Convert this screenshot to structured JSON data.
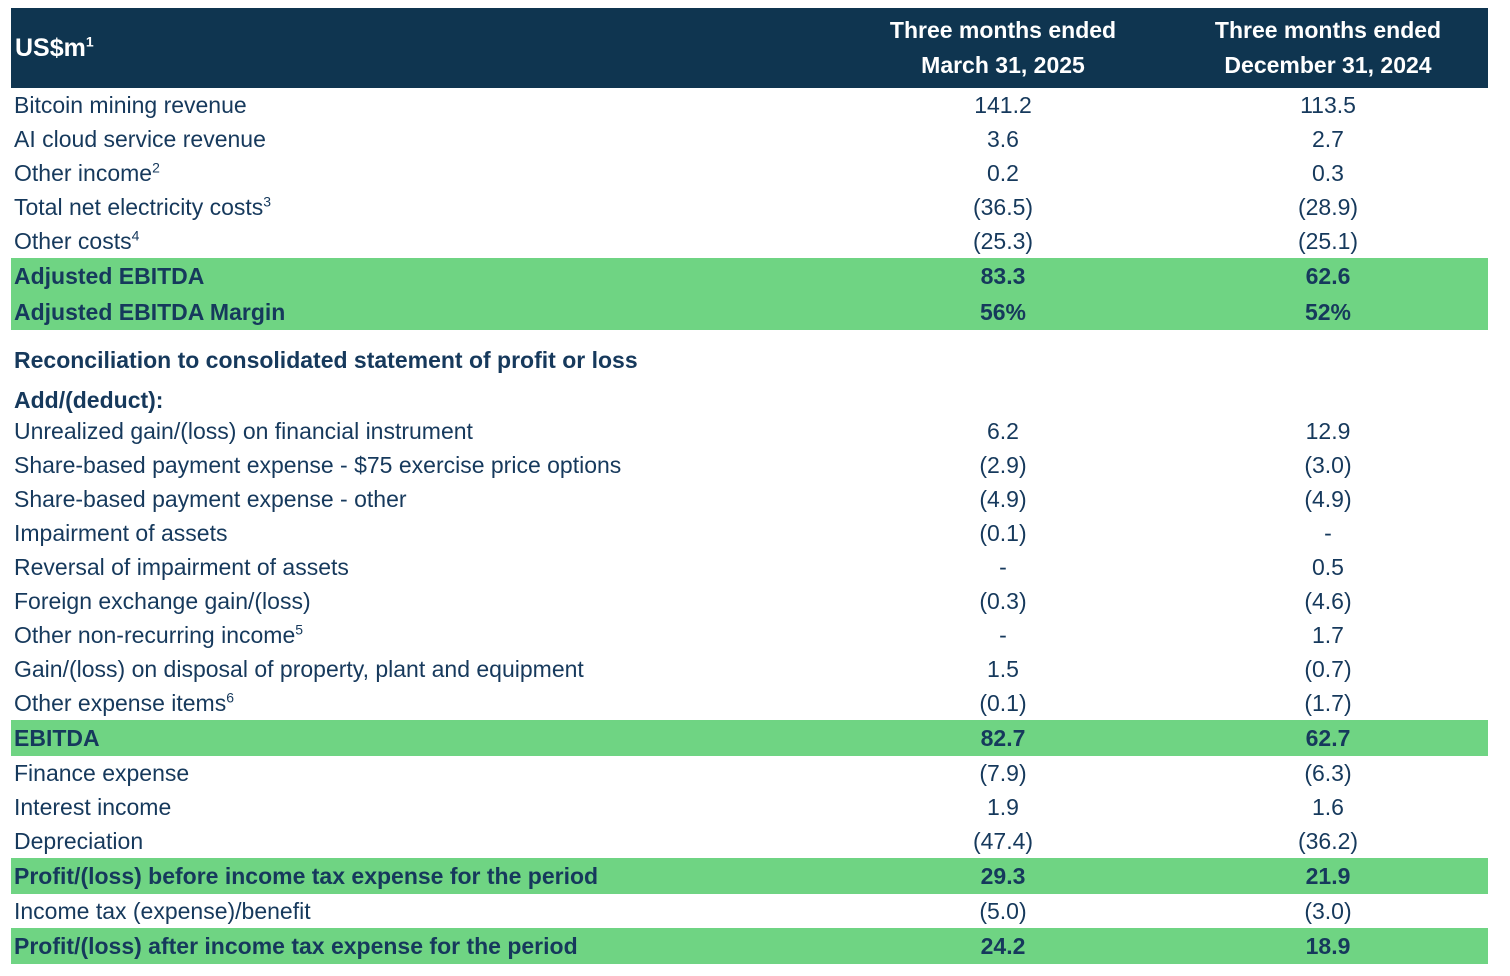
{
  "table": {
    "unit_label": "US$m",
    "unit_sup": "1",
    "colors": {
      "header_bg": "#0f3550",
      "highlight_bg": "#6fd483",
      "text": "#16395c",
      "header_text": "#ffffff"
    },
    "columns": [
      {
        "line1": "Three months ended",
        "line2": "March 31, 2025"
      },
      {
        "line1": "Three months ended",
        "line2": "December 31, 2024"
      }
    ],
    "rows": [
      {
        "type": "data",
        "label": "Bitcoin mining revenue",
        "values": [
          "141.2",
          "113.5"
        ]
      },
      {
        "type": "data",
        "label": "AI cloud service revenue",
        "values": [
          "3.6",
          "2.7"
        ]
      },
      {
        "type": "data",
        "label": "Other income",
        "sup": "2",
        "values": [
          "0.2",
          "0.3"
        ]
      },
      {
        "type": "data",
        "label": "Total net electricity costs",
        "sup": "3",
        "values": [
          "(36.5)",
          "(28.9)"
        ]
      },
      {
        "type": "data",
        "label": "Other costs",
        "sup": "4",
        "values": [
          "(25.3)",
          "(25.1)"
        ]
      },
      {
        "type": "highlight",
        "label": "Adjusted EBITDA",
        "values": [
          "83.3",
          "62.6"
        ]
      },
      {
        "type": "highlight",
        "label": "Adjusted EBITDA Margin",
        "values": [
          "56%",
          "52%"
        ]
      },
      {
        "type": "section",
        "gap": "lg",
        "label": "Reconciliation to consolidated statement of profit or loss",
        "values": [
          "",
          ""
        ]
      },
      {
        "type": "section",
        "gap": "sm",
        "label": "Add/(deduct):",
        "values": [
          "",
          ""
        ]
      },
      {
        "type": "data",
        "label": "Unrealized gain/(loss) on financial instrument",
        "values": [
          "6.2",
          "12.9"
        ]
      },
      {
        "type": "data",
        "label": "Share-based payment expense - $75 exercise price options",
        "values": [
          "(2.9)",
          "(3.0)"
        ]
      },
      {
        "type": "data",
        "label": "Share-based payment expense - other",
        "values": [
          "(4.9)",
          "(4.9)"
        ]
      },
      {
        "type": "data",
        "label": "Impairment of assets",
        "values": [
          "(0.1)",
          "-"
        ]
      },
      {
        "type": "data",
        "label": "Reversal of impairment of assets",
        "values": [
          "-",
          "0.5"
        ]
      },
      {
        "type": "data",
        "label": "Foreign exchange gain/(loss)",
        "values": [
          "(0.3)",
          "(4.6)"
        ]
      },
      {
        "type": "data",
        "label": "Other non-recurring income",
        "sup": "5",
        "values": [
          "-",
          "1.7"
        ]
      },
      {
        "type": "data",
        "label": "Gain/(loss) on disposal of property, plant and equipment",
        "values": [
          "1.5",
          "(0.7)"
        ]
      },
      {
        "type": "data",
        "label": "Other expense items",
        "sup": "6",
        "values": [
          "(0.1)",
          "(1.7)"
        ]
      },
      {
        "type": "highlight",
        "label": "EBITDA",
        "values": [
          "82.7",
          "62.7"
        ]
      },
      {
        "type": "data",
        "label": "Finance expense",
        "values": [
          "(7.9)",
          "(6.3)"
        ]
      },
      {
        "type": "data",
        "label": "Interest income",
        "values": [
          "1.9",
          "1.6"
        ]
      },
      {
        "type": "data",
        "label": "Depreciation",
        "values": [
          "(47.4)",
          "(36.2)"
        ]
      },
      {
        "type": "highlight",
        "label": "Profit/(loss) before income tax expense for the period",
        "values": [
          "29.3",
          "21.9"
        ]
      },
      {
        "type": "data",
        "label": "Income tax (expense)/benefit",
        "values": [
          "(5.0)",
          "(3.0)"
        ]
      },
      {
        "type": "highlight",
        "label": "Profit/(loss) after income tax expense for the period",
        "values": [
          "24.2",
          "18.9"
        ]
      }
    ]
  }
}
